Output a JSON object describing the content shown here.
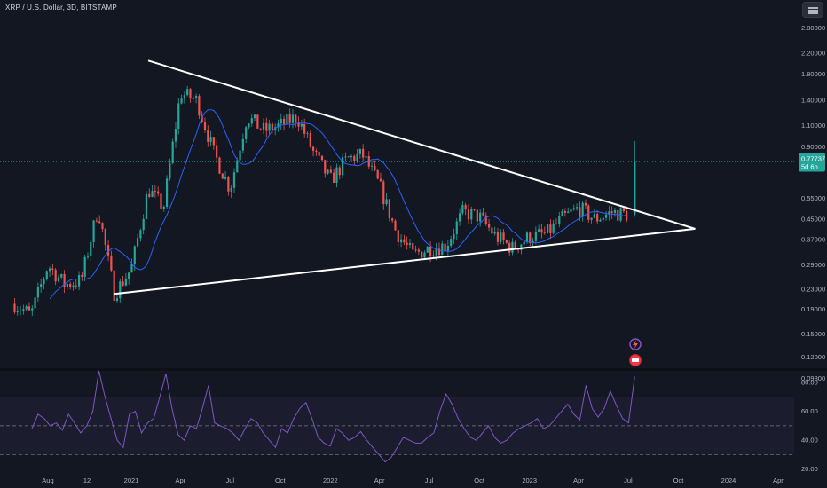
{
  "header": {
    "title": "XRP / U.S. Dollar, 3D, BITSTAMP"
  },
  "price_badge": {
    "price": "0.77737",
    "countdown": "5d 6h"
  },
  "colors": {
    "background": "#131722",
    "up": "#26a69a",
    "down": "#ef5350",
    "ma_line": "#2962ff",
    "rsi_line": "#7e57c2",
    "trendline": "#ffffff",
    "badge_bg": "#26a69a"
  },
  "chart_data": [
    {
      "type": "candlestick",
      "symbol": "XRP / U.S. Dollar",
      "interval": "3D",
      "exchange": "BITSTAMP",
      "scale": "log",
      "y_ticks": [
        "2.80000",
        "2.20000",
        "1.80000",
        "1.40000",
        "1.10000",
        "0.90000",
        "0.55000",
        "0.45000",
        "0.37000",
        "0.29000",
        "0.23000",
        "0.19000",
        "0.15000",
        "0.12000",
        "0.09800"
      ],
      "x_ticks": [
        "Aug",
        "12",
        "2021",
        "Apr",
        "Jul",
        "Oct",
        "2022",
        "Apr",
        "Jul",
        "Oct",
        "2023",
        "Apr",
        "Jul",
        "Oct",
        "2024",
        "Apr"
      ],
      "last_price": 0.77737,
      "series": [
        {
          "name": "",
          "style": "moving-average"
        }
      ],
      "close_path": [
        {
          "x": "2020-06",
          "y": 0.2
        },
        {
          "x": "2020-07",
          "y": 0.18
        },
        {
          "x": "2020-08",
          "y": 0.29
        },
        {
          "x": "2020-09",
          "y": 0.24
        },
        {
          "x": "2020-10",
          "y": 0.25
        },
        {
          "x": "2020-11",
          "y": 0.5
        },
        {
          "x": "2020-12",
          "y": 0.22
        },
        {
          "x": "2021-01",
          "y": 0.28
        },
        {
          "x": "2021-02",
          "y": 0.6
        },
        {
          "x": "2021-03",
          "y": 0.5
        },
        {
          "x": "2021-04",
          "y": 1.5
        },
        {
          "x": "2021-05",
          "y": 1.4
        },
        {
          "x": "2021-06",
          "y": 0.85
        },
        {
          "x": "2021-07",
          "y": 0.6
        },
        {
          "x": "2021-08",
          "y": 1.2
        },
        {
          "x": "2021-09",
          "y": 1.05
        },
        {
          "x": "2021-10",
          "y": 1.1
        },
        {
          "x": "2021-11",
          "y": 1.2
        },
        {
          "x": "2021-12",
          "y": 0.85
        },
        {
          "x": "2022-01",
          "y": 0.65
        },
        {
          "x": "2022-02",
          "y": 0.8
        },
        {
          "x": "2022-03",
          "y": 0.83
        },
        {
          "x": "2022-04",
          "y": 0.62
        },
        {
          "x": "2022-05",
          "y": 0.4
        },
        {
          "x": "2022-06",
          "y": 0.32
        },
        {
          "x": "2022-07",
          "y": 0.34
        },
        {
          "x": "2022-08",
          "y": 0.35
        },
        {
          "x": "2022-09",
          "y": 0.48
        },
        {
          "x": "2022-10",
          "y": 0.46
        },
        {
          "x": "2022-11",
          "y": 0.38
        },
        {
          "x": "2022-12",
          "y": 0.34
        },
        {
          "x": "2023-01",
          "y": 0.38
        },
        {
          "x": "2023-02",
          "y": 0.39
        },
        {
          "x": "2023-03",
          "y": 0.45
        },
        {
          "x": "2023-04",
          "y": 0.5
        },
        {
          "x": "2023-05",
          "y": 0.45
        },
        {
          "x": "2023-06",
          "y": 0.48
        },
        {
          "x": "2023-07",
          "y": 0.47
        },
        {
          "x": "2023-07-13",
          "y": 0.77737
        }
      ],
      "trendlines": [
        {
          "name": "",
          "from": {
            "x": "2020-12",
            "y": 0.22
          },
          "to": {
            "x": "2023-11",
            "y": 0.41
          }
        },
        {
          "name": "",
          "from": {
            "x": "2021-02",
            "y": 2.05
          },
          "to": {
            "x": "2023-11",
            "y": 0.41
          }
        }
      ]
    },
    {
      "type": "line",
      "indicator": "RSI",
      "y_ticks": [
        "80.00",
        "60.00",
        "40.00",
        "20.00"
      ],
      "bands": [
        30,
        50,
        70
      ],
      "ylim": [
        18,
        88
      ],
      "values": [
        48,
        58,
        55,
        50,
        52,
        47,
        58,
        52,
        45,
        50,
        60,
        88,
        70,
        55,
        40,
        35,
        58,
        60,
        45,
        52,
        55,
        70,
        86,
        62,
        44,
        40,
        50,
        48,
        62,
        78,
        52,
        50,
        48,
        45,
        40,
        48,
        55,
        52,
        45,
        40,
        35,
        48,
        45,
        55,
        62,
        66,
        55,
        42,
        38,
        36,
        48,
        45,
        40,
        42,
        46,
        40,
        35,
        30,
        25,
        28,
        35,
        42,
        40,
        38,
        38,
        42,
        45,
        60,
        72,
        65,
        55,
        48,
        42,
        40,
        45,
        50,
        42,
        38,
        40,
        45,
        48,
        50,
        52,
        55,
        48,
        50,
        55,
        60,
        65,
        58,
        54,
        78,
        62,
        56,
        62,
        74,
        64,
        55,
        52,
        84
      ]
    }
  ]
}
